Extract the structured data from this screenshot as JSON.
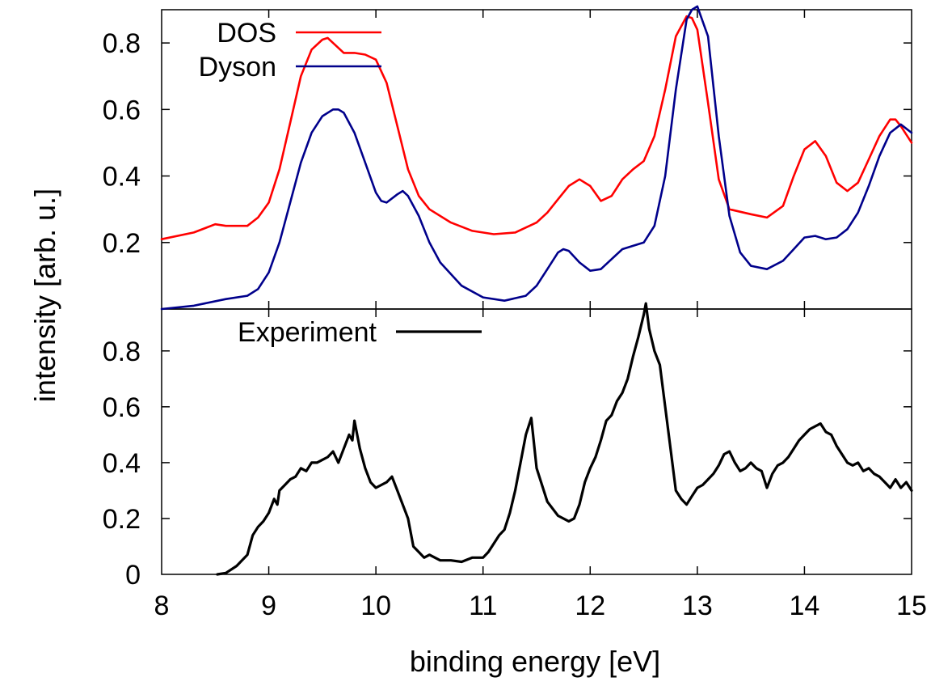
{
  "chart_data": [
    {
      "type": "line",
      "panel": "top",
      "xlim": [
        8,
        15
      ],
      "ylim": [
        0,
        0.9
      ],
      "yticks": [
        "0.2",
        "0.4",
        "0.6",
        "0.8"
      ],
      "ytick_values": [
        0.2,
        0.4,
        0.6,
        0.8
      ],
      "legend_position": "top-left",
      "series": [
        {
          "name": "DOS",
          "color": "#ff0000",
          "x": [
            8.0,
            8.3,
            8.5,
            8.6,
            8.8,
            8.9,
            9.0,
            9.1,
            9.2,
            9.3,
            9.4,
            9.5,
            9.55,
            9.6,
            9.7,
            9.8,
            9.9,
            10.0,
            10.1,
            10.2,
            10.3,
            10.4,
            10.5,
            10.7,
            10.9,
            11.1,
            11.3,
            11.5,
            11.6,
            11.7,
            11.8,
            11.9,
            12.0,
            12.1,
            12.2,
            12.3,
            12.4,
            12.5,
            12.6,
            12.7,
            12.8,
            12.9,
            12.95,
            13.0,
            13.1,
            13.2,
            13.3,
            13.5,
            13.65,
            13.8,
            13.9,
            14.0,
            14.1,
            14.2,
            14.3,
            14.4,
            14.5,
            14.6,
            14.7,
            14.8,
            14.85,
            14.9,
            15.0
          ],
          "y": [
            0.21,
            0.23,
            0.255,
            0.25,
            0.25,
            0.275,
            0.32,
            0.42,
            0.56,
            0.7,
            0.78,
            0.81,
            0.815,
            0.8,
            0.77,
            0.77,
            0.765,
            0.75,
            0.68,
            0.55,
            0.42,
            0.34,
            0.3,
            0.26,
            0.235,
            0.225,
            0.23,
            0.26,
            0.29,
            0.33,
            0.37,
            0.39,
            0.37,
            0.325,
            0.34,
            0.39,
            0.42,
            0.445,
            0.52,
            0.66,
            0.82,
            0.88,
            0.875,
            0.84,
            0.62,
            0.39,
            0.3,
            0.285,
            0.275,
            0.31,
            0.4,
            0.48,
            0.505,
            0.46,
            0.38,
            0.355,
            0.38,
            0.45,
            0.52,
            0.57,
            0.57,
            0.55,
            0.5
          ]
        },
        {
          "name": "Dyson",
          "color": "#00008b",
          "x": [
            8.0,
            8.3,
            8.6,
            8.8,
            8.9,
            9.0,
            9.1,
            9.2,
            9.3,
            9.4,
            9.5,
            9.6,
            9.65,
            9.7,
            9.8,
            9.9,
            10.0,
            10.05,
            10.1,
            10.2,
            10.25,
            10.3,
            10.4,
            10.5,
            10.6,
            10.8,
            11.0,
            11.2,
            11.4,
            11.5,
            11.6,
            11.7,
            11.75,
            11.8,
            11.9,
            12.0,
            12.1,
            12.2,
            12.3,
            12.4,
            12.5,
            12.6,
            12.7,
            12.8,
            12.9,
            12.95,
            13.0,
            13.1,
            13.2,
            13.3,
            13.4,
            13.5,
            13.65,
            13.8,
            13.9,
            14.0,
            14.1,
            14.2,
            14.3,
            14.4,
            14.5,
            14.6,
            14.7,
            14.8,
            14.9,
            15.0
          ],
          "y": [
            0.0,
            0.01,
            0.03,
            0.04,
            0.06,
            0.11,
            0.2,
            0.32,
            0.44,
            0.53,
            0.58,
            0.6,
            0.6,
            0.59,
            0.53,
            0.44,
            0.35,
            0.325,
            0.32,
            0.345,
            0.355,
            0.34,
            0.28,
            0.2,
            0.14,
            0.07,
            0.035,
            0.025,
            0.04,
            0.07,
            0.12,
            0.17,
            0.18,
            0.175,
            0.14,
            0.115,
            0.12,
            0.15,
            0.18,
            0.19,
            0.2,
            0.25,
            0.4,
            0.66,
            0.87,
            0.9,
            0.91,
            0.82,
            0.52,
            0.28,
            0.17,
            0.13,
            0.12,
            0.145,
            0.18,
            0.215,
            0.22,
            0.21,
            0.215,
            0.24,
            0.29,
            0.37,
            0.46,
            0.53,
            0.555,
            0.53
          ]
        }
      ]
    },
    {
      "type": "line",
      "panel": "bottom",
      "xlim": [
        8,
        15
      ],
      "ylim": [
        0,
        0.95
      ],
      "yticks": [
        "0",
        "0.2",
        "0.4",
        "0.6",
        "0.8"
      ],
      "ytick_values": [
        0,
        0.2,
        0.4,
        0.6,
        0.8
      ],
      "xticks": [
        "8",
        "9",
        "10",
        "11",
        "12",
        "13",
        "14",
        "15"
      ],
      "xtick_values": [
        8,
        9,
        10,
        11,
        12,
        13,
        14,
        15
      ],
      "legend_position": "top-left",
      "series": [
        {
          "name": "Experiment",
          "color": "#000000",
          "x": [
            8.52,
            8.6,
            8.7,
            8.8,
            8.85,
            8.9,
            8.95,
            9.0,
            9.05,
            9.08,
            9.1,
            9.15,
            9.2,
            9.25,
            9.3,
            9.35,
            9.4,
            9.45,
            9.5,
            9.55,
            9.6,
            9.65,
            9.7,
            9.75,
            9.78,
            9.8,
            9.85,
            9.9,
            9.95,
            10.0,
            10.05,
            10.1,
            10.15,
            10.2,
            10.25,
            10.3,
            10.35,
            10.4,
            10.45,
            10.5,
            10.6,
            10.7,
            10.8,
            10.9,
            10.95,
            11.0,
            11.05,
            11.1,
            11.15,
            11.2,
            11.25,
            11.3,
            11.35,
            11.4,
            11.45,
            11.5,
            11.6,
            11.7,
            11.8,
            11.85,
            11.9,
            11.95,
            12.0,
            12.05,
            12.1,
            12.15,
            12.2,
            12.25,
            12.3,
            12.35,
            12.4,
            12.45,
            12.5,
            12.52,
            12.55,
            12.6,
            12.65,
            12.7,
            12.75,
            12.8,
            12.85,
            12.9,
            12.95,
            13.0,
            13.05,
            13.1,
            13.15,
            13.2,
            13.25,
            13.3,
            13.35,
            13.4,
            13.45,
            13.5,
            13.55,
            13.6,
            13.65,
            13.7,
            13.75,
            13.8,
            13.85,
            13.9,
            13.95,
            14.0,
            14.05,
            14.1,
            14.15,
            14.2,
            14.25,
            14.3,
            14.35,
            14.4,
            14.45,
            14.5,
            14.55,
            14.6,
            14.65,
            14.7,
            14.75,
            14.8,
            14.85,
            14.9,
            14.95,
            15.0
          ],
          "y": [
            0.0,
            0.005,
            0.03,
            0.07,
            0.14,
            0.17,
            0.19,
            0.22,
            0.27,
            0.25,
            0.3,
            0.32,
            0.34,
            0.35,
            0.38,
            0.37,
            0.4,
            0.4,
            0.41,
            0.42,
            0.44,
            0.4,
            0.45,
            0.5,
            0.48,
            0.55,
            0.45,
            0.38,
            0.33,
            0.31,
            0.32,
            0.33,
            0.35,
            0.3,
            0.25,
            0.2,
            0.1,
            0.08,
            0.06,
            0.07,
            0.05,
            0.05,
            0.045,
            0.06,
            0.06,
            0.06,
            0.08,
            0.11,
            0.14,
            0.16,
            0.22,
            0.3,
            0.4,
            0.5,
            0.56,
            0.38,
            0.26,
            0.21,
            0.19,
            0.2,
            0.25,
            0.33,
            0.38,
            0.42,
            0.48,
            0.55,
            0.57,
            0.62,
            0.65,
            0.7,
            0.78,
            0.85,
            0.93,
            0.97,
            0.88,
            0.8,
            0.75,
            0.6,
            0.45,
            0.3,
            0.27,
            0.25,
            0.28,
            0.31,
            0.32,
            0.34,
            0.36,
            0.39,
            0.43,
            0.44,
            0.4,
            0.37,
            0.38,
            0.4,
            0.38,
            0.37,
            0.31,
            0.36,
            0.39,
            0.4,
            0.42,
            0.45,
            0.48,
            0.5,
            0.52,
            0.53,
            0.54,
            0.51,
            0.5,
            0.46,
            0.43,
            0.4,
            0.39,
            0.4,
            0.37,
            0.38,
            0.36,
            0.35,
            0.33,
            0.31,
            0.34,
            0.31,
            0.33,
            0.3
          ]
        }
      ]
    }
  ],
  "axes": {
    "ylabel": "intensity [arb. u.]",
    "xlabel": "binding energy [eV]"
  }
}
